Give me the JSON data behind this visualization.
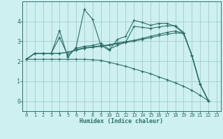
{
  "title": "",
  "xlabel": "Humidex (Indice chaleur)",
  "bg_color": "#cff0f0",
  "grid_color": "#a0cccc",
  "line_color": "#2d7068",
  "xlim": [
    -0.5,
    23.5
  ],
  "ylim": [
    -0.5,
    5.0
  ],
  "xticks": [
    0,
    1,
    2,
    3,
    4,
    5,
    6,
    7,
    8,
    9,
    10,
    11,
    12,
    13,
    14,
    15,
    16,
    17,
    18,
    19,
    20,
    21,
    22,
    23
  ],
  "yticks": [
    0,
    1,
    2,
    3,
    4
  ],
  "series": [
    {
      "x": [
        0,
        1,
        2,
        3,
        4,
        5,
        6,
        7,
        8,
        9,
        10,
        11,
        12,
        13,
        14,
        15,
        16,
        17,
        18,
        19,
        20,
        21,
        22
      ],
      "y": [
        2.1,
        2.4,
        2.4,
        2.4,
        3.55,
        2.2,
        2.7,
        4.6,
        4.1,
        2.8,
        2.55,
        3.1,
        3.25,
        4.05,
        3.95,
        3.8,
        3.9,
        3.9,
        3.75,
        3.4,
        2.3,
        0.85,
        0.02
      ]
    },
    {
      "x": [
        0,
        1,
        2,
        3,
        4,
        5,
        6,
        7,
        8,
        9,
        10,
        11,
        12,
        13,
        14,
        15,
        16,
        17,
        18,
        19,
        20,
        21,
        22
      ],
      "y": [
        2.1,
        2.4,
        2.4,
        2.4,
        3.2,
        2.3,
        2.65,
        2.75,
        2.8,
        2.9,
        2.6,
        2.8,
        2.95,
        3.75,
        3.7,
        3.65,
        3.72,
        3.78,
        3.78,
        3.45,
        2.3,
        0.85,
        0.02
      ]
    },
    {
      "x": [
        0,
        1,
        2,
        3,
        4,
        5,
        6,
        7,
        8,
        9,
        10,
        11,
        12,
        13,
        14,
        15,
        16,
        17,
        18,
        19,
        20,
        21,
        22
      ],
      "y": [
        2.1,
        2.4,
        2.4,
        2.4,
        2.4,
        2.45,
        2.55,
        2.65,
        2.7,
        2.75,
        2.8,
        2.88,
        2.95,
        3.0,
        3.1,
        3.18,
        3.28,
        3.35,
        3.42,
        3.4,
        2.3,
        0.85,
        0.02
      ]
    },
    {
      "x": [
        0,
        1,
        2,
        3,
        4,
        5,
        6,
        7,
        8,
        9,
        10,
        11,
        12,
        13,
        14,
        15,
        16,
        17,
        18,
        19,
        20,
        21,
        22
      ],
      "y": [
        2.1,
        2.4,
        2.4,
        2.4,
        2.4,
        2.45,
        2.58,
        2.68,
        2.73,
        2.78,
        2.83,
        2.92,
        2.98,
        3.05,
        3.15,
        3.25,
        3.35,
        3.45,
        3.52,
        3.4,
        2.3,
        0.85,
        0.02
      ]
    },
    {
      "x": [
        0,
        1,
        2,
        3,
        4,
        5,
        6,
        7,
        8,
        9,
        10,
        11,
        12,
        13,
        14,
        15,
        16,
        17,
        18,
        19,
        20,
        21,
        22
      ],
      "y": [
        2.1,
        2.1,
        2.1,
        2.1,
        2.1,
        2.1,
        2.1,
        2.1,
        2.08,
        2.05,
        1.95,
        1.85,
        1.75,
        1.62,
        1.5,
        1.38,
        1.22,
        1.08,
        0.92,
        0.75,
        0.55,
        0.3,
        0.02
      ]
    }
  ]
}
